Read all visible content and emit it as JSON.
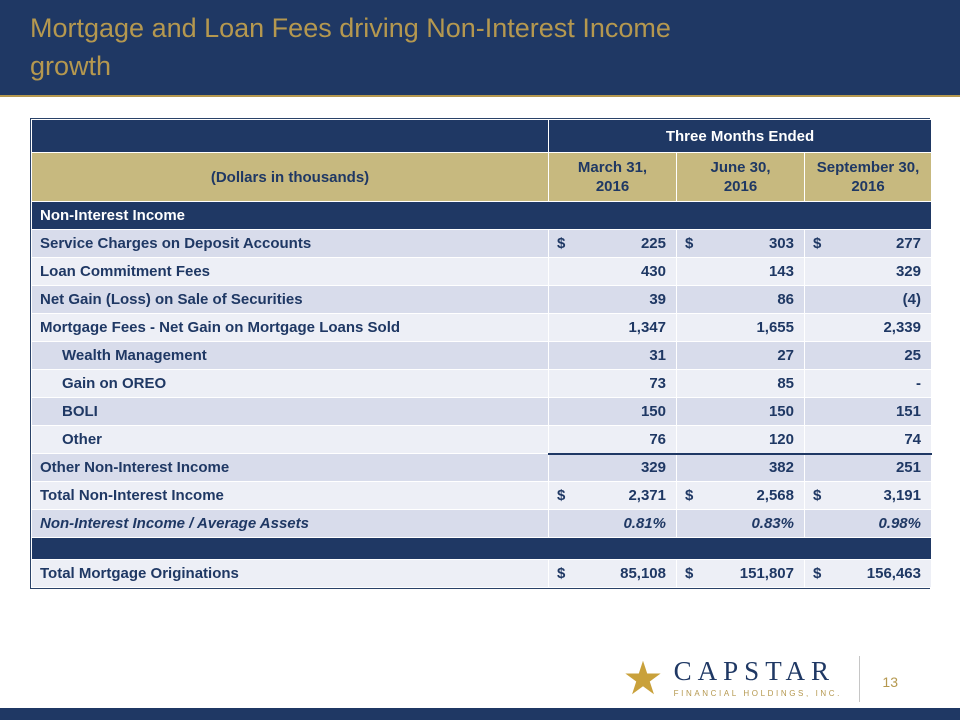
{
  "slide": {
    "title_line1": "Mortgage and Loan Fees driving Non-Interest Income",
    "title_line2": "growth",
    "page_number": "13"
  },
  "logo": {
    "name": "CAPSTAR",
    "subtitle": "FINANCIAL HOLDINGS, INC."
  },
  "colors": {
    "navy": "#1F3864",
    "gold": "#B5984F",
    "tan_header": "#C7B97F",
    "band_dark": "#D8DCEB",
    "band_light": "#EDEFF6"
  },
  "table": {
    "period_group_label": "Three Months Ended",
    "units_label": "(Dollars in thousands)",
    "currency_symbol": "$",
    "columns": [
      {
        "line1": "March 31,",
        "line2": "2016"
      },
      {
        "line1": "June 30,",
        "line2": "2016"
      },
      {
        "line1": "September 30,",
        "line2": "2016"
      }
    ],
    "rows": [
      {
        "type": "section",
        "label": "Non-Interest Income"
      },
      {
        "type": "data",
        "label": "Service Charges on Deposit Accounts",
        "dollar": true,
        "band": "dark",
        "values": [
          "225",
          "303",
          "277"
        ]
      },
      {
        "type": "data",
        "label": "Loan Commitment Fees",
        "band": "light",
        "values": [
          "430",
          "143",
          "329"
        ]
      },
      {
        "type": "data",
        "label": "Net Gain (Loss) on Sale of Securities",
        "band": "dark",
        "values": [
          "39",
          "86",
          "(4)"
        ]
      },
      {
        "type": "data",
        "label": "Mortgage Fees - Net Gain on Mortgage Loans Sold",
        "band": "light",
        "values": [
          "1,347",
          "1,655",
          "2,339"
        ]
      },
      {
        "type": "data",
        "label": "Wealth Management",
        "indent": true,
        "band": "dark",
        "values": [
          "31",
          "27",
          "25"
        ]
      },
      {
        "type": "data",
        "label": "Gain on OREO",
        "indent": true,
        "band": "light",
        "values": [
          "73",
          "85",
          "-"
        ]
      },
      {
        "type": "data",
        "label": "BOLI",
        "indent": true,
        "band": "dark",
        "values": [
          "150",
          "150",
          "151"
        ]
      },
      {
        "type": "data",
        "label": "Other",
        "indent": true,
        "band": "light",
        "values": [
          "76",
          "120",
          "74"
        ]
      },
      {
        "type": "data",
        "label": "Other Non-Interest Income",
        "band": "dark",
        "topline": true,
        "values": [
          "329",
          "382",
          "251"
        ]
      },
      {
        "type": "data",
        "label": "Total Non-Interest Income",
        "dollar": true,
        "band": "light",
        "values": [
          "2,371",
          "2,568",
          "3,191"
        ]
      },
      {
        "type": "data",
        "label": "Non-Interest Income / Average Assets",
        "italic": true,
        "band": "dark",
        "values": [
          "0.81%",
          "0.83%",
          "0.98%"
        ]
      },
      {
        "type": "spacer"
      },
      {
        "type": "data",
        "label": "Total Mortgage Originations",
        "dollar": true,
        "band": "light",
        "values": [
          "85,108",
          "151,807",
          "156,463"
        ]
      }
    ]
  }
}
